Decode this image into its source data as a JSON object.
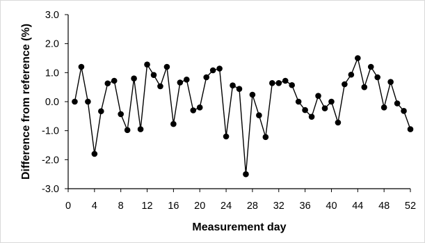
{
  "chart_data": {
    "type": "line",
    "title": "",
    "xlabel": "Measurement day",
    "ylabel": "Difference from reference (%)",
    "xlim": [
      0,
      52
    ],
    "ylim": [
      -3.0,
      3.0
    ],
    "x_ticks": [
      0,
      4,
      8,
      12,
      16,
      20,
      24,
      28,
      32,
      36,
      40,
      44,
      48,
      52
    ],
    "x_tick_labels": [
      "0",
      "4",
      "8",
      "12",
      "16",
      "20",
      "24",
      "28",
      "32",
      "36",
      "40",
      "44",
      "48",
      "52"
    ],
    "y_ticks": [
      3.0,
      2.0,
      1.0,
      0.0,
      -1.0,
      -2.0,
      -3.0
    ],
    "y_tick_labels": [
      "3.0",
      "2.0",
      "1.0",
      "0.0",
      "-1.0",
      "-2.0",
      "-3.0"
    ],
    "grid": false,
    "legend": "none",
    "series": [
      {
        "color": "#000000",
        "marker": "circle",
        "x": [
          1,
          2,
          3,
          4,
          5,
          6,
          7,
          8,
          9,
          10,
          11,
          12,
          13,
          14,
          15,
          16,
          17,
          18,
          19,
          20,
          21,
          22,
          23,
          24,
          25,
          26,
          27,
          28,
          29,
          30,
          31,
          32,
          33,
          34,
          35,
          36,
          37,
          38,
          39,
          40,
          41,
          42,
          43,
          44,
          45,
          46,
          47,
          48,
          49,
          50,
          51,
          52
        ],
        "y": [
          0.0,
          1.2,
          0.0,
          -1.8,
          -0.33,
          0.63,
          0.72,
          -0.43,
          -0.98,
          0.8,
          -0.95,
          1.28,
          0.92,
          0.53,
          1.2,
          -0.77,
          0.66,
          0.76,
          -0.3,
          -0.2,
          0.84,
          1.08,
          1.14,
          -1.2,
          0.56,
          0.44,
          -2.5,
          0.24,
          -0.47,
          -1.22,
          0.64,
          0.64,
          0.72,
          0.57,
          0.0,
          -0.29,
          -0.52,
          0.2,
          -0.23,
          0.0,
          -0.72,
          0.6,
          0.93,
          1.5,
          0.5,
          1.2,
          0.84,
          -0.2,
          0.68,
          -0.06,
          -0.32,
          -0.95
        ]
      }
    ]
  }
}
